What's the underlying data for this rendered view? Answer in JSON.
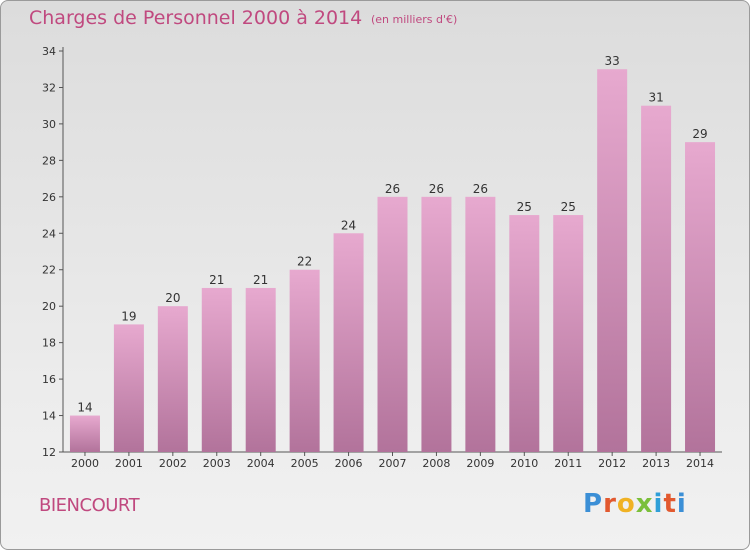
{
  "title": "Charges de Personnel 2000 à 2014",
  "subtitle": "(en milliers d'€)",
  "commune": "BIENCOURT",
  "logo": {
    "letters": [
      "P",
      "r",
      "o",
      "x",
      "i",
      "t",
      "i"
    ],
    "colors": [
      "#3b8fd6",
      "#e2592f",
      "#f0b224",
      "#7bbf3a",
      "#2f9fd8",
      "#e2592f",
      "#3b8fd6"
    ]
  },
  "colors": {
    "bar_top": "#e7a9cf",
    "bar_bottom": "#b2739b",
    "text_accent": "#c0497f"
  },
  "chart_data": {
    "type": "bar",
    "title": "Charges de Personnel 2000 à 2014",
    "subtitle": "(en milliers d'€)",
    "categories": [
      "2000",
      "2001",
      "2002",
      "2003",
      "2004",
      "2005",
      "2006",
      "2007",
      "2008",
      "2009",
      "2010",
      "2011",
      "2012",
      "2013",
      "2014"
    ],
    "values": [
      14,
      19,
      20,
      21,
      21,
      22,
      24,
      26,
      26,
      26,
      25,
      25,
      33,
      31,
      29
    ],
    "ylim": [
      12,
      34
    ],
    "yticks": [
      12,
      14,
      16,
      18,
      20,
      22,
      24,
      26,
      28,
      30,
      32,
      34
    ],
    "grid": false,
    "data_labels": true
  }
}
